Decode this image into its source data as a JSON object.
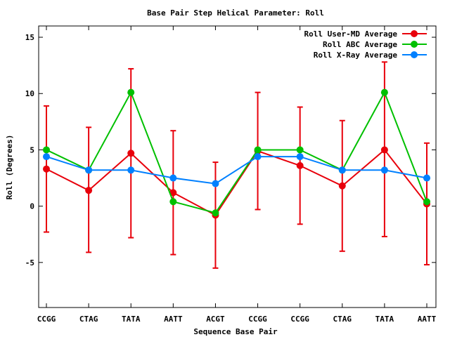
{
  "chart_data": {
    "type": "line",
    "title": "Base Pair Step Helical Parameter: Roll",
    "xlabel": "Sequence Base Pair",
    "ylabel": "Roll (Degrees)",
    "categories": [
      "CCGG",
      "CTAG",
      "TATA",
      "AATT",
      "ACGT",
      "CCGG",
      "CCGG",
      "CTAG",
      "TATA",
      "AATT"
    ],
    "ylim": [
      -9,
      16
    ],
    "yticks": [
      -5,
      0,
      5,
      10,
      15
    ],
    "ytick_labels": [
      "-5",
      "0",
      "5",
      "10",
      "15"
    ],
    "grid": false,
    "legend_position": "top-right",
    "series": [
      {
        "name": "Roll User-MD Average",
        "color": "#e8000b",
        "values": [
          3.3,
          1.4,
          4.7,
          1.2,
          -0.8,
          4.9,
          3.6,
          1.8,
          5.0,
          0.2
        ],
        "error_low": [
          -2.3,
          -4.1,
          -2.8,
          -4.3,
          -5.5,
          -0.3,
          -1.6,
          -4.0,
          -2.7,
          -5.2
        ],
        "error_high": [
          8.9,
          7.0,
          12.2,
          6.7,
          3.9,
          10.1,
          8.8,
          7.6,
          12.8,
          5.6
        ]
      },
      {
        "name": "Roll ABC Average",
        "color": "#00c000",
        "values": [
          5.0,
          3.2,
          10.1,
          0.4,
          -0.6,
          5.0,
          5.0,
          3.2,
          10.1,
          0.4
        ]
      },
      {
        "name": "Roll X-Ray Average",
        "color": "#0080ff",
        "values": [
          4.4,
          3.2,
          3.2,
          2.5,
          2.0,
          4.4,
          4.4,
          3.2,
          3.2,
          2.5
        ]
      }
    ]
  }
}
